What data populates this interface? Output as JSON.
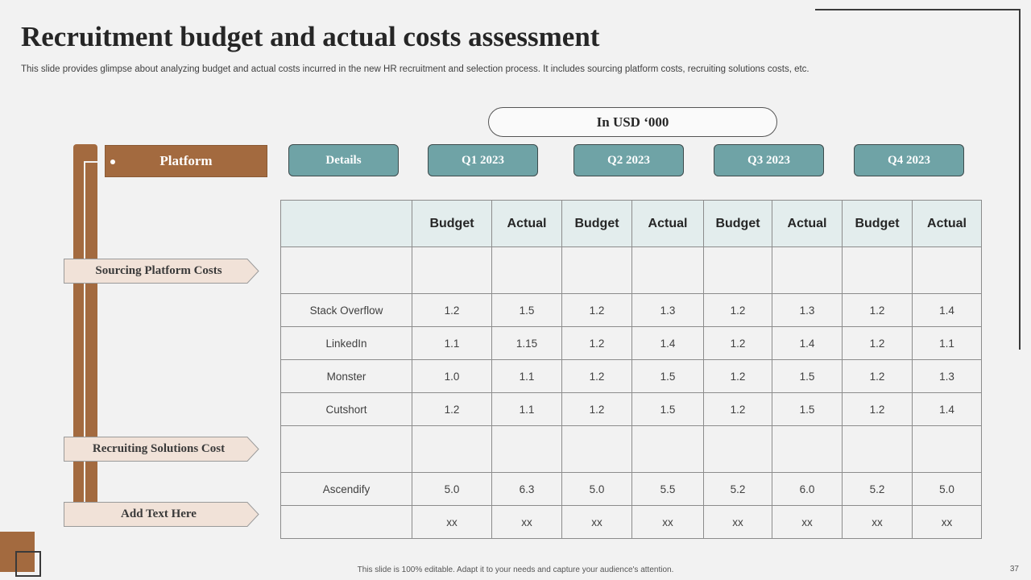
{
  "slide": {
    "title": "Recruitment budget and actual costs assessment",
    "subtitle": "This slide provides glimpse about analyzing budget and actual costs incurred in the new HR recruitment and selection process. It includes sourcing platform costs, recruiting solutions costs, etc.",
    "unit_label": "In USD ‘000",
    "platform_label": "Platform",
    "details_label": "Details",
    "quarters": [
      "Q1 2023",
      "Q2 2023",
      "Q3 2023",
      "Q4 2023"
    ],
    "categories": [
      "Sourcing  Platform  Costs",
      "Recruiting Solutions Cost",
      "Add Text Here"
    ],
    "footer": "This slide is 100% editable.  Adapt it to your needs and capture your audience's attention.",
    "page_number": "37"
  },
  "table": {
    "headers": [
      "",
      "Budget",
      "Actual",
      "Budget",
      "Actual",
      "Budget",
      "Actual",
      "Budget",
      "Actual"
    ],
    "rows": [
      [
        "",
        "",
        "",
        "",
        "",
        "",
        "",
        "",
        ""
      ],
      [
        "Stack Overflow",
        "1.2",
        "1.5",
        "1.2",
        "1.3",
        "1.2",
        "1.3",
        "1.2",
        "1.4"
      ],
      [
        "LinkedIn",
        "1.1",
        "1.15",
        "1.2",
        "1.4",
        "1.2",
        "1.4",
        "1.2",
        "1.1"
      ],
      [
        "Monster",
        "1.0",
        "1.1",
        "1.2",
        "1.5",
        "1.2",
        "1.5",
        "1.2",
        "1.3"
      ],
      [
        "Cutshort",
        "1.2",
        "1.1",
        "1.2",
        "1.5",
        "1.2",
        "1.5",
        "1.2",
        "1.4"
      ],
      [
        "",
        "",
        "",
        "",
        "",
        "",
        "",
        "",
        ""
      ],
      [
        "Ascendify",
        "5.0",
        "6.3",
        "5.0",
        "5.5",
        "5.2",
        "6.0",
        "5.2",
        "5.0"
      ],
      [
        "",
        "xx",
        "xx",
        "xx",
        "xx",
        "xx",
        "xx",
        "xx",
        "xx"
      ]
    ]
  },
  "colors": {
    "accent_brown": "#a36a3f",
    "accent_teal": "#6fa3a6",
    "label_fill": "#f1e2d8",
    "header_fill": "#e3eded",
    "background": "#f2f2f2"
  }
}
